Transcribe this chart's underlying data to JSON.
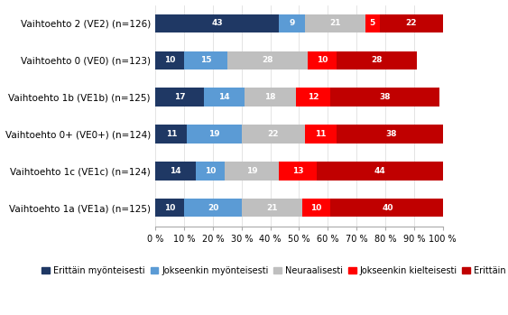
{
  "categories": [
    "Vaihtoehto 1a (VE1a) (n=125)",
    "Vaihtoehto 1c (VE1c) (n=124)",
    "Vaihtoehto 0+ (VE0+) (n=124)",
    "Vaihtoehto 1b (VE1b) (n=125)",
    "Vaihtoehto 0 (VE0) (n=123)",
    "Vaihtoehto 2 (VE2) (n=126)"
  ],
  "series": [
    {
      "label": "Erittäin myönteisesti",
      "color": "#1f3864",
      "values": [
        10,
        14,
        11,
        17,
        10,
        43
      ]
    },
    {
      "label": "Jokseenkin myönteisesti",
      "color": "#5b9bd5",
      "values": [
        20,
        10,
        19,
        14,
        15,
        9
      ]
    },
    {
      "label": "Neuraalisesti",
      "color": "#bfbfbf",
      "values": [
        21,
        19,
        22,
        18,
        28,
        21
      ]
    },
    {
      "label": "Jokseenkin kielteisesti",
      "color": "#ff0000",
      "values": [
        10,
        13,
        11,
        12,
        10,
        5
      ]
    },
    {
      "label": "Erittäin kielteisesti",
      "color": "#c00000",
      "values": [
        40,
        44,
        38,
        38,
        28,
        22
      ]
    }
  ],
  "xlim": [
    0,
    100
  ],
  "xticks": [
    0,
    10,
    20,
    30,
    40,
    50,
    60,
    70,
    80,
    90,
    100
  ],
  "xtick_labels": [
    "0 %",
    "10 %",
    "20 %",
    "30 %",
    "40 %",
    "50 %",
    "60 %",
    "70 %",
    "80 %",
    "90 %",
    "100 %"
  ],
  "bar_height": 0.5,
  "text_color_light": "#ffffff",
  "background_color": "#ffffff",
  "grid_color": "#d9d9d9",
  "font_size_bars": 6.5,
  "font_size_ticks": 7,
  "font_size_legend": 7,
  "font_size_ylabel": 7.5
}
